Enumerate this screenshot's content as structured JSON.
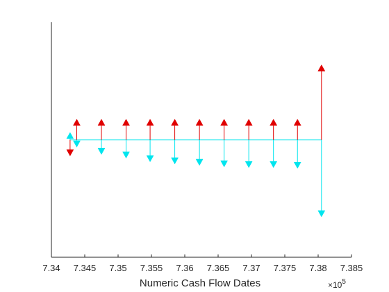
{
  "chart_data": {
    "type": "cash-flow-arrows",
    "title": "",
    "xlabel": "Numeric Cash Flow Dates",
    "x_exponent_label": "×10",
    "x_exponent_power": "5",
    "xlim": [
      7.34,
      7.385
    ],
    "xticks": [
      "7.34",
      "7.345",
      "7.35",
      "7.355",
      "7.36",
      "7.365",
      "7.37",
      "7.375",
      "7.38",
      "7.385"
    ],
    "ylim": [
      -1.6,
      1.6
    ],
    "grid": false,
    "baseline": {
      "x_start": 7.3428,
      "x_end": 7.3805,
      "color": "#00e5ee"
    },
    "colors": {
      "positive": "#e00000",
      "negative": "#00e5ee",
      "axis": "#262626"
    },
    "series": [
      {
        "color": "#e00000",
        "points": [
          {
            "x": 7.3428,
            "y": -0.22
          },
          {
            "x": 7.3438,
            "y": 0.28
          },
          {
            "x": 7.3475,
            "y": 0.28
          },
          {
            "x": 7.3512,
            "y": 0.28
          },
          {
            "x": 7.3548,
            "y": 0.28
          },
          {
            "x": 7.3585,
            "y": 0.28
          },
          {
            "x": 7.3622,
            "y": 0.28
          },
          {
            "x": 7.3659,
            "y": 0.28
          },
          {
            "x": 7.3696,
            "y": 0.28
          },
          {
            "x": 7.3733,
            "y": 0.28
          },
          {
            "x": 7.3769,
            "y": 0.28
          },
          {
            "x": 7.3805,
            "y": 1.02
          }
        ]
      },
      {
        "color": "#00e5ee",
        "points": [
          {
            "x": 7.3428,
            "y": 0.1
          },
          {
            "x": 7.3438,
            "y": -0.1
          },
          {
            "x": 7.3475,
            "y": -0.2
          },
          {
            "x": 7.3512,
            "y": -0.25
          },
          {
            "x": 7.3548,
            "y": -0.3
          },
          {
            "x": 7.3585,
            "y": -0.33
          },
          {
            "x": 7.3622,
            "y": -0.35
          },
          {
            "x": 7.3659,
            "y": -0.37
          },
          {
            "x": 7.3696,
            "y": -0.38
          },
          {
            "x": 7.3733,
            "y": -0.38
          },
          {
            "x": 7.3769,
            "y": -0.39
          },
          {
            "x": 7.3805,
            "y": -1.05
          }
        ]
      }
    ]
  }
}
